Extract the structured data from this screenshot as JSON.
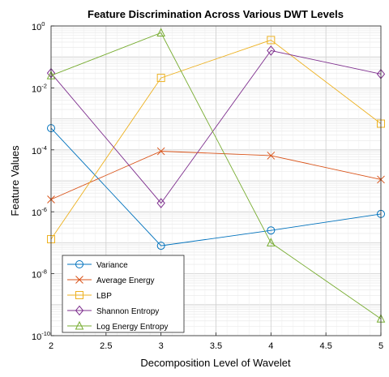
{
  "chart_data": {
    "type": "line",
    "title": "Feature Discrimination Across Various DWT Levels",
    "xlabel": "Decomposition Level of Wavelet",
    "ylabel": "Feature Values",
    "x": [
      2,
      3,
      4,
      5
    ],
    "xlim": [
      2,
      5
    ],
    "xticks": [
      "2",
      "2.5",
      "3",
      "3.5",
      "4",
      "4.5",
      "5"
    ],
    "yscale": "log",
    "ylim": [
      1e-10,
      1
    ],
    "yticks": [
      {
        "base": "10",
        "exp": "0"
      },
      {
        "base": "10",
        "exp": "-2"
      },
      {
        "base": "10",
        "exp": "-4"
      },
      {
        "base": "10",
        "exp": "-6"
      },
      {
        "base": "10",
        "exp": "-8"
      },
      {
        "base": "10",
        "exp": "-10"
      }
    ],
    "grid": true,
    "legend_position": "bottom-left",
    "series": [
      {
        "name": "Variance",
        "marker": "circle",
        "color": "#0072BD",
        "values": [
          0.0005,
          8e-08,
          2.5e-07,
          8.5e-07
        ]
      },
      {
        "name": "Average Energy",
        "marker": "x",
        "color": "#D95319",
        "values": [
          2.5e-06,
          9e-05,
          6.5e-05,
          1.1e-05
        ]
      },
      {
        "name": "LBP",
        "marker": "square",
        "color": "#EDB120",
        "values": [
          1.3e-07,
          0.021,
          0.35,
          0.0007
        ]
      },
      {
        "name": "Shannon Entropy",
        "marker": "diamond",
        "color": "#7E2F8E",
        "values": [
          0.03,
          1.9e-06,
          0.16,
          0.028
        ]
      },
      {
        "name": "Log Energy Entropy",
        "marker": "triangle",
        "color": "#77AC30",
        "values": [
          0.025,
          0.6,
          1e-07,
          3.5e-10
        ]
      }
    ]
  }
}
